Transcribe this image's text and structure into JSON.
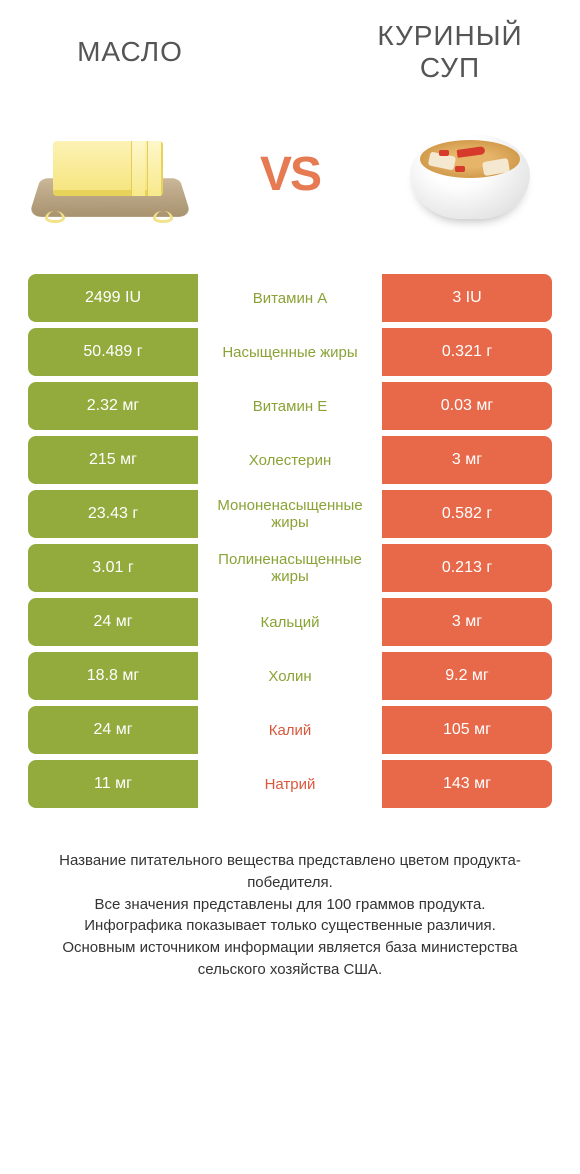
{
  "colors": {
    "green": "#92ab3c",
    "orange": "#e8694a",
    "label_green": "#8aa336",
    "label_orange": "#d9583c"
  },
  "header": {
    "left_title": "МАСЛО",
    "right_title": "КУРИНЫЙ СУП",
    "vs": "VS"
  },
  "rows": [
    {
      "left": "2499 IU",
      "label": "Витамин A",
      "right": "3 IU",
      "winner": "left"
    },
    {
      "left": "50.489 г",
      "label": "Насыщенные жиры",
      "right": "0.321 г",
      "winner": "left"
    },
    {
      "left": "2.32 мг",
      "label": "Витамин E",
      "right": "0.03 мг",
      "winner": "left"
    },
    {
      "left": "215 мг",
      "label": "Холестерин",
      "right": "3 мг",
      "winner": "left"
    },
    {
      "left": "23.43 г",
      "label": "Мононенасыщенные жиры",
      "right": "0.582 г",
      "winner": "left"
    },
    {
      "left": "3.01 г",
      "label": "Полиненасыщенные жиры",
      "right": "0.213 г",
      "winner": "left"
    },
    {
      "left": "24 мг",
      "label": "Кальций",
      "right": "3 мг",
      "winner": "left"
    },
    {
      "left": "18.8 мг",
      "label": "Холин",
      "right": "9.2 мг",
      "winner": "left"
    },
    {
      "left": "24 мг",
      "label": "Калий",
      "right": "105 мг",
      "winner": "right"
    },
    {
      "left": "11 мг",
      "label": "Натрий",
      "right": "143 мг",
      "winner": "right"
    }
  ],
  "footer": {
    "line1": "Название питательного вещества представлено цветом продукта-победителя.",
    "line2": "Все значения представлены для 100 граммов продукта.",
    "line3": "Инфографика показывает только существенные различия.",
    "line4": "Основным источником информации является база министерства сельского хозяйства США."
  }
}
